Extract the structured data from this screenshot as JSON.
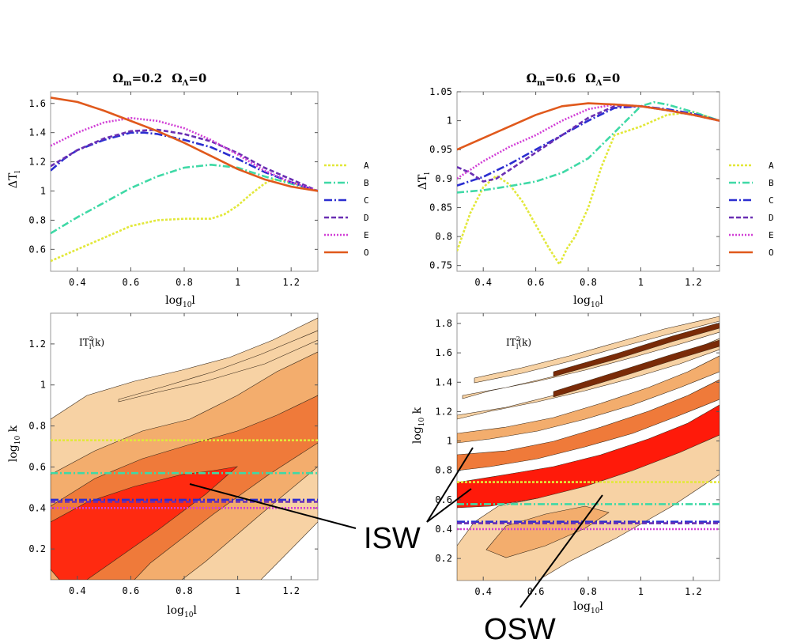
{
  "legend": [
    {
      "label": "A",
      "color": "#e2e83a",
      "dash": "3,2"
    },
    {
      "label": "B",
      "color": "#3fd9a6",
      "dash": "9,3,2,3"
    },
    {
      "label": "C",
      "color": "#2b2ed0",
      "dash": "10,3,2,3"
    },
    {
      "label": "D",
      "color": "#6a2fb3",
      "dash": "6,3"
    },
    {
      "label": "E",
      "color": "#d13fd6",
      "dash": "2,2"
    },
    {
      "label": "O",
      "color": "#e0591c",
      "dash": ""
    }
  ],
  "colors": {
    "contour_light": "#f7d2a4",
    "contour_mid": "#f3ad6d",
    "contour_dark": "#ef7a3a",
    "contour_peak": "#ff1a0a",
    "contour_deep": "#7a2b08"
  },
  "annotations": {
    "isw": "ISW",
    "osw": "OSW"
  },
  "chart_data": [
    {
      "type": "line",
      "title_om": "Ω",
      "title_om_sub": "m",
      "title_om_val": "=0.2",
      "title_ol": "Ω",
      "title_ol_sub": "Λ",
      "title_ol_val": "=0",
      "xlabel": "log",
      "xlabel_sub": "10",
      "xlabel_end": "l",
      "ylabel": "ΔT",
      "ylabel_sub": "l",
      "xlim": [
        0.3,
        1.3
      ],
      "ylim": [
        0.45,
        1.68
      ],
      "xticks": [
        0.4,
        0.6,
        0.8,
        1,
        1.2
      ],
      "xtick_labels": [
        "0.4",
        "0.6",
        "0.8",
        "1",
        "1.2"
      ],
      "yticks": [
        0.6,
        0.8,
        1,
        1.2,
        1.4,
        1.6
      ],
      "ytick_labels": [
        "0.6",
        "0.8",
        "1",
        "1.2",
        "1.4",
        "1.6"
      ],
      "series": [
        {
          "name": "A",
          "x": [
            0.3,
            0.4,
            0.5,
            0.6,
            0.7,
            0.8,
            0.9,
            0.95,
            1.0,
            1.05,
            1.1,
            1.13,
            1.2,
            1.3
          ],
          "y": [
            0.52,
            0.6,
            0.68,
            0.76,
            0.8,
            0.81,
            0.81,
            0.84,
            0.9,
            0.98,
            1.05,
            1.08,
            1.06,
            1.0
          ]
        },
        {
          "name": "B",
          "x": [
            0.3,
            0.4,
            0.5,
            0.6,
            0.7,
            0.8,
            0.9,
            1.0,
            1.1,
            1.2,
            1.3
          ],
          "y": [
            0.71,
            0.82,
            0.92,
            1.02,
            1.1,
            1.16,
            1.18,
            1.16,
            1.1,
            1.05,
            1.0
          ]
        },
        {
          "name": "C",
          "x": [
            0.3,
            0.35,
            0.4,
            0.5,
            0.6,
            0.65,
            0.7,
            0.8,
            0.9,
            1.0,
            1.1,
            1.2,
            1.3
          ],
          "y": [
            1.14,
            1.22,
            1.28,
            1.35,
            1.4,
            1.4,
            1.39,
            1.35,
            1.3,
            1.22,
            1.13,
            1.06,
            1.0
          ]
        },
        {
          "name": "D",
          "x": [
            0.3,
            0.4,
            0.5,
            0.6,
            0.7,
            0.8,
            0.9,
            1.0,
            1.1,
            1.2,
            1.3
          ],
          "y": [
            1.17,
            1.28,
            1.36,
            1.41,
            1.42,
            1.39,
            1.34,
            1.26,
            1.16,
            1.08,
            1.0
          ]
        },
        {
          "name": "E",
          "x": [
            0.3,
            0.4,
            0.5,
            0.6,
            0.7,
            0.8,
            0.9,
            1.0,
            1.1,
            1.2,
            1.3
          ],
          "y": [
            1.31,
            1.4,
            1.47,
            1.5,
            1.48,
            1.43,
            1.35,
            1.25,
            1.14,
            1.06,
            1.0
          ]
        },
        {
          "name": "O",
          "x": [
            0.3,
            0.4,
            0.5,
            0.6,
            0.7,
            0.8,
            0.9,
            1.0,
            1.1,
            1.2,
            1.3
          ],
          "y": [
            1.64,
            1.61,
            1.55,
            1.48,
            1.41,
            1.33,
            1.24,
            1.15,
            1.08,
            1.03,
            1.0
          ]
        }
      ]
    },
    {
      "type": "line",
      "title_om": "Ω",
      "title_om_sub": "m",
      "title_om_val": "=0.6",
      "title_ol": "Ω",
      "title_ol_sub": "Λ",
      "title_ol_val": "=0",
      "xlabel": "log",
      "xlabel_sub": "10",
      "xlabel_end": "l",
      "ylabel": "ΔT",
      "ylabel_sub": "l",
      "xlim": [
        0.3,
        1.3
      ],
      "ylim": [
        0.74,
        1.05
      ],
      "xticks": [
        0.4,
        0.6,
        0.8,
        1,
        1.2
      ],
      "xtick_labels": [
        "0.4",
        "0.6",
        "0.8",
        "1",
        "1.2"
      ],
      "yticks": [
        0.75,
        0.8,
        0.85,
        0.9,
        0.95,
        1,
        1.05
      ],
      "ytick_labels": [
        "0.75",
        "0.8",
        "0.85",
        "0.9",
        "0.95",
        "1",
        "1.05"
      ],
      "series": [
        {
          "name": "A",
          "x": [
            0.3,
            0.35,
            0.4,
            0.45,
            0.5,
            0.55,
            0.6,
            0.65,
            0.69,
            0.72,
            0.75,
            0.8,
            0.85,
            0.9,
            1.0,
            1.1,
            1.2,
            1.3
          ],
          "y": [
            0.775,
            0.84,
            0.885,
            0.905,
            0.89,
            0.86,
            0.82,
            0.78,
            0.752,
            0.78,
            0.8,
            0.85,
            0.92,
            0.975,
            0.99,
            1.01,
            1.015,
            1.0
          ]
        },
        {
          "name": "B",
          "x": [
            0.3,
            0.4,
            0.5,
            0.6,
            0.7,
            0.8,
            0.9,
            1.0,
            1.05,
            1.1,
            1.2,
            1.3
          ],
          "y": [
            0.876,
            0.88,
            0.887,
            0.895,
            0.91,
            0.935,
            0.98,
            1.025,
            1.032,
            1.028,
            1.015,
            1.0
          ]
        },
        {
          "name": "C",
          "x": [
            0.3,
            0.4,
            0.5,
            0.6,
            0.7,
            0.8,
            0.9,
            1.0,
            1.1,
            1.2,
            1.3
          ],
          "y": [
            0.888,
            0.903,
            0.925,
            0.95,
            0.975,
            1.0,
            1.022,
            1.025,
            1.02,
            1.012,
            1.0
          ]
        },
        {
          "name": "D",
          "x": [
            0.3,
            0.35,
            0.4,
            0.45,
            0.5,
            0.6,
            0.7,
            0.8,
            0.9,
            1.0,
            1.1,
            1.2,
            1.3
          ],
          "y": [
            0.92,
            0.91,
            0.895,
            0.9,
            0.915,
            0.945,
            0.975,
            1.005,
            1.025,
            1.025,
            1.018,
            1.01,
            1.0
          ]
        },
        {
          "name": "E",
          "x": [
            0.3,
            0.4,
            0.5,
            0.6,
            0.7,
            0.8,
            0.9,
            1.0,
            1.1,
            1.2,
            1.3
          ],
          "y": [
            0.9,
            0.93,
            0.955,
            0.975,
            1.0,
            1.02,
            1.028,
            1.025,
            1.018,
            1.01,
            1.0
          ]
        },
        {
          "name": "O",
          "x": [
            0.3,
            0.4,
            0.5,
            0.6,
            0.7,
            0.8,
            0.9,
            1.0,
            1.1,
            1.2,
            1.3
          ],
          "y": [
            0.95,
            0.97,
            0.99,
            1.01,
            1.025,
            1.03,
            1.028,
            1.025,
            1.018,
            1.01,
            1.0
          ]
        }
      ]
    },
    {
      "type": "heatmap",
      "label": "IT",
      "label_sup": "2",
      "label_sub": "l",
      "label_end": "(k)",
      "xlabel": "log",
      "xlabel_sub": "10",
      "xlabel_end": "l",
      "ylabel": "log",
      "ylabel_sub": "10",
      "ylabel_end": " k",
      "xlim": [
        0.3,
        1.3
      ],
      "ylim": [
        0.05,
        1.35
      ],
      "xticks": [
        0.4,
        0.6,
        0.8,
        1,
        1.2
      ],
      "xtick_labels": [
        "0.4",
        "0.6",
        "0.8",
        "1",
        "1.2"
      ],
      "yticks": [
        0.2,
        0.4,
        0.6,
        0.8,
        1,
        1.2
      ],
      "ytick_labels": [
        "0.2",
        "0.4",
        "0.6",
        "0.8",
        "1",
        "1.2"
      ],
      "hlines": [
        {
          "name": "A",
          "y": 0.73
        },
        {
          "name": "B",
          "y": 0.57
        },
        {
          "name": "C",
          "y": 0.44
        },
        {
          "name": "D",
          "y": 0.43
        },
        {
          "name": "E",
          "y": 0.4
        }
      ]
    },
    {
      "type": "heatmap",
      "label": "IT",
      "label_sup": "2",
      "label_sub": "l",
      "label_end": "(k)",
      "xlabel": "log",
      "xlabel_sub": "10",
      "xlabel_end": "l",
      "ylabel": "log",
      "ylabel_sub": "10",
      "ylabel_end": " k",
      "xlim": [
        0.3,
        1.3
      ],
      "ylim": [
        0.05,
        1.87
      ],
      "xticks": [
        0.4,
        0.6,
        0.8,
        1,
        1.2
      ],
      "xtick_labels": [
        "0.4",
        "0.6",
        "0.8",
        "1",
        "1.2"
      ],
      "yticks": [
        0.2,
        0.4,
        0.6,
        0.8,
        1,
        1.2,
        1.4,
        1.6,
        1.8
      ],
      "ytick_labels": [
        "0.2",
        "0.4",
        "0.6",
        "0.8",
        "1",
        "1.2",
        "1.4",
        "1.6",
        "1.8"
      ],
      "hlines": [
        {
          "name": "A",
          "y": 0.72
        },
        {
          "name": "B",
          "y": 0.57
        },
        {
          "name": "C",
          "y": 0.45
        },
        {
          "name": "D",
          "y": 0.44
        },
        {
          "name": "E",
          "y": 0.4
        }
      ]
    }
  ]
}
